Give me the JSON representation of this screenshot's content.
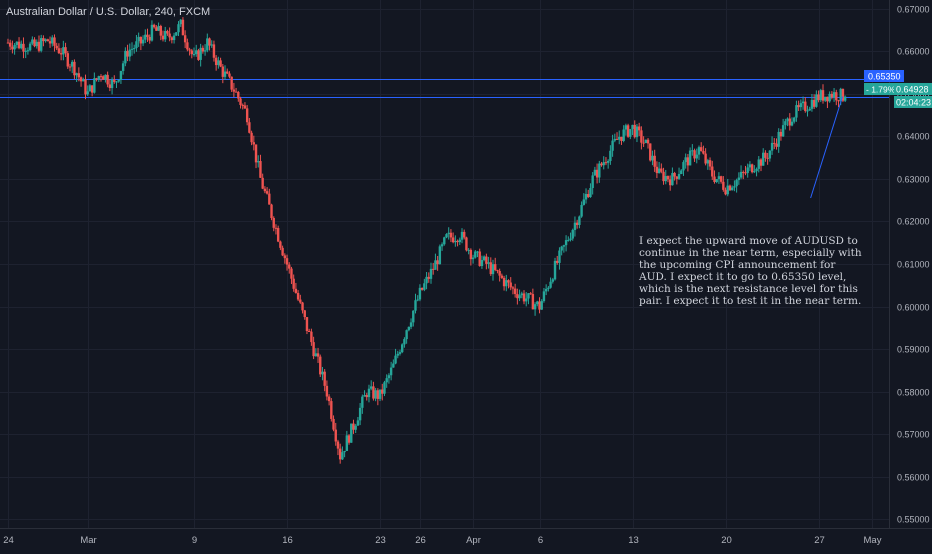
{
  "header": {
    "title": "Australian Dollar / U.S. Dollar, 240, FXCM"
  },
  "annotation": {
    "text": "I expect the upward move of AUDUSD to continue in the near term, especially with the upcoming CPI announcement for AUD. I expect it to go to 0.65350 level, which is the next resistance level for this pair. I expect it to test it in the near term."
  },
  "colors": {
    "background": "#131722",
    "up": "#26a69a",
    "down": "#ef5350",
    "grid": "#1e2230",
    "level_line": "#2962ff",
    "badge": "#26a69a",
    "axis_text": "#b2b5be"
  },
  "chart_data": {
    "type": "candlestick",
    "title": "Australian Dollar / U.S. Dollar, 240, FXCM",
    "ylim": [
      0.548,
      0.672
    ],
    "y_ticks": [
      "0.67000",
      "0.66000",
      "0.65000",
      "0.64000",
      "0.63000",
      "0.62000",
      "0.61000",
      "0.60000",
      "0.59000",
      "0.58000",
      "0.57000",
      "0.56000",
      "0.55000"
    ],
    "x_ticks": [
      {
        "label": "24",
        "day": 0
      },
      {
        "label": "Mar",
        "day": 6
      },
      {
        "label": "9",
        "day": 14
      },
      {
        "label": "16",
        "day": 21
      },
      {
        "label": "23",
        "day": 28
      },
      {
        "label": "26",
        "day": 31
      },
      {
        "label": "Apr",
        "day": 35
      },
      {
        "label": "6",
        "day": 40
      },
      {
        "label": "13",
        "day": 47
      },
      {
        "label": "20",
        "day": 54
      },
      {
        "label": "27",
        "day": 61
      },
      {
        "label": "May",
        "day": 65
      }
    ],
    "x_range_days": [
      -0.6,
      66.3
    ],
    "path": [
      [
        0,
        0.662
      ],
      [
        2,
        0.661
      ],
      [
        3,
        0.6625
      ],
      [
        4,
        0.66
      ],
      [
        5,
        0.656
      ],
      [
        6,
        0.65
      ],
      [
        7,
        0.655
      ],
      [
        8,
        0.652
      ],
      [
        9,
        0.66
      ],
      [
        10,
        0.662
      ],
      [
        11,
        0.665
      ],
      [
        12,
        0.663
      ],
      [
        13,
        0.666
      ],
      [
        14,
        0.658
      ],
      [
        15,
        0.662
      ],
      [
        16,
        0.656
      ],
      [
        17,
        0.651
      ],
      [
        18,
        0.645
      ],
      [
        19,
        0.63
      ],
      [
        20,
        0.62
      ],
      [
        21,
        0.61
      ],
      [
        22,
        0.6
      ],
      [
        23,
        0.59
      ],
      [
        24,
        0.58
      ],
      [
        25,
        0.565
      ],
      [
        26,
        0.572
      ],
      [
        27,
        0.58
      ],
      [
        28,
        0.579
      ],
      [
        29,
        0.586
      ],
      [
        30,
        0.595
      ],
      [
        31,
        0.603
      ],
      [
        32,
        0.609
      ],
      [
        33,
        0.616
      ],
      [
        34,
        0.617
      ],
      [
        35,
        0.612
      ],
      [
        36,
        0.61
      ],
      [
        37,
        0.607
      ],
      [
        38,
        0.604
      ],
      [
        39,
        0.602
      ],
      [
        40,
        0.6
      ],
      [
        41,
        0.608
      ],
      [
        42,
        0.615
      ],
      [
        43,
        0.622
      ],
      [
        44,
        0.63
      ],
      [
        45,
        0.635
      ],
      [
        46,
        0.64
      ],
      [
        47,
        0.642
      ],
      [
        48,
        0.638
      ],
      [
        49,
        0.631
      ],
      [
        50,
        0.63
      ],
      [
        51,
        0.634
      ],
      [
        52,
        0.637
      ],
      [
        53,
        0.631
      ],
      [
        54,
        0.628
      ],
      [
        55,
        0.63
      ],
      [
        56,
        0.633
      ],
      [
        57,
        0.635
      ],
      [
        58,
        0.64
      ],
      [
        59,
        0.645
      ],
      [
        60,
        0.647
      ],
      [
        61,
        0.6493
      ],
      [
        62,
        0.65
      ],
      [
        63,
        0.6493
      ]
    ],
    "levels": [
      {
        "name": "resistance",
        "value": 0.6535,
        "label": "0.65350"
      },
      {
        "name": "current",
        "value": 0.6493,
        "label": "0.64928"
      }
    ],
    "badges": {
      "change_label": "- 1.79%",
      "price_label": "0.64928",
      "timer_label": "02:04:23"
    },
    "trendline": {
      "from": [
        60.4,
        0.6255
      ],
      "to": [
        62.8,
        0.6493
      ]
    }
  }
}
